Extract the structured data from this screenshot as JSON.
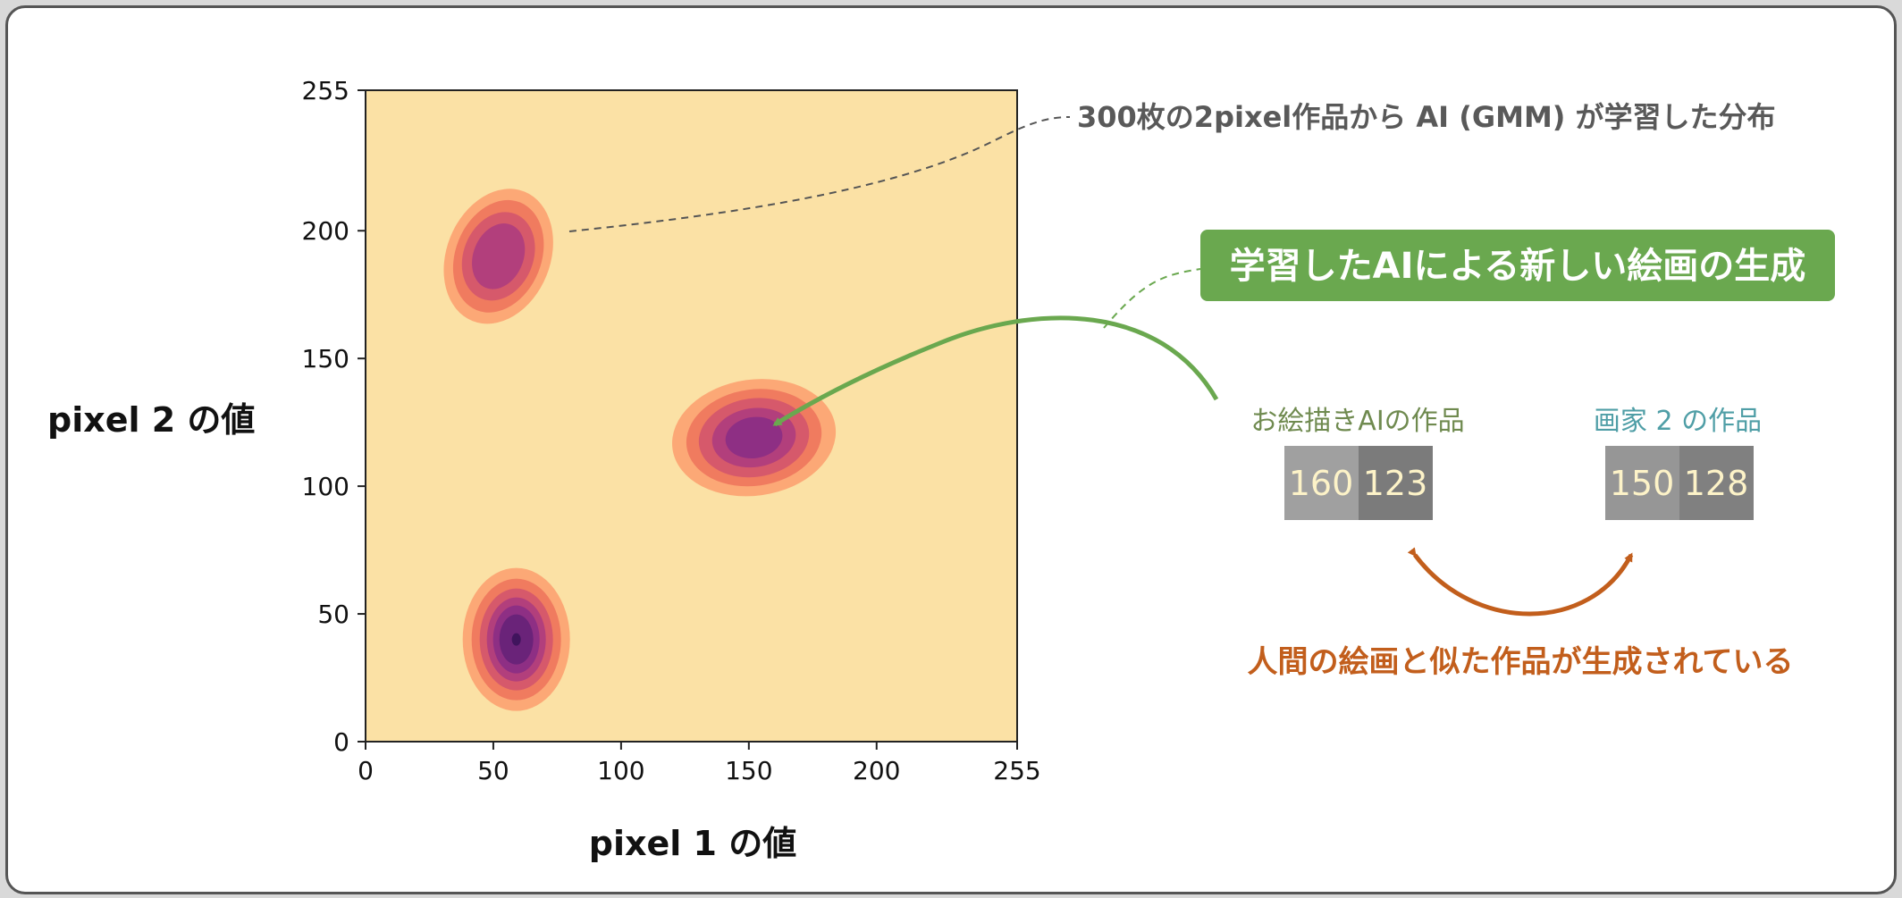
{
  "chart_data": {
    "type": "contour",
    "xlabel": "pixel 1 の値",
    "ylabel": "pixel 2 の値",
    "xlim": [
      0,
      255
    ],
    "ylim": [
      0,
      255
    ],
    "xticks": [
      "0",
      "50",
      "100",
      "150",
      "200",
      "255"
    ],
    "yticks": [
      "0",
      "50",
      "100",
      "150",
      "200",
      "255"
    ],
    "colormap": "magma",
    "background_color": "#fbe1a5",
    "levels": [
      "#fca876",
      "#f07b5f",
      "#d6596b",
      "#b23f7c",
      "#8e2f84",
      "#6a2379",
      "#40145d"
    ],
    "components": [
      {
        "name": "cluster-top-left",
        "mean_x": 52,
        "mean_y": 190,
        "peak_level": 4
      },
      {
        "name": "cluster-middle-right",
        "mean_x": 152,
        "mean_y": 119,
        "peak_level": 5
      },
      {
        "name": "cluster-bottom",
        "mean_x": 59,
        "mean_y": 40,
        "peak_level": 7
      }
    ]
  },
  "annotations": {
    "distribution": "300枚の2pixel作品から AI (GMM) が学習した分布",
    "generation_banner": "学習したAIによる新しい絵画の生成",
    "similar_message": "人間の絵画と似た作品が生成されている"
  },
  "ai_artwork": {
    "caption": "お絵描きAIの作品",
    "pixel1": "160",
    "pixel2": "123",
    "pixel1_color": "#a0a0a0",
    "pixel2_color": "#7b7b7b"
  },
  "human_artwork": {
    "caption": "画家 2 の作品",
    "pixel1": "150",
    "pixel2": "128",
    "pixel1_color": "#969696",
    "pixel2_color": "#808080"
  },
  "colors": {
    "banner": "#6aa84f",
    "green_arrow": "#6aa84f",
    "orange_arrow": "#c25e1c",
    "dashed_line": "#555555"
  }
}
